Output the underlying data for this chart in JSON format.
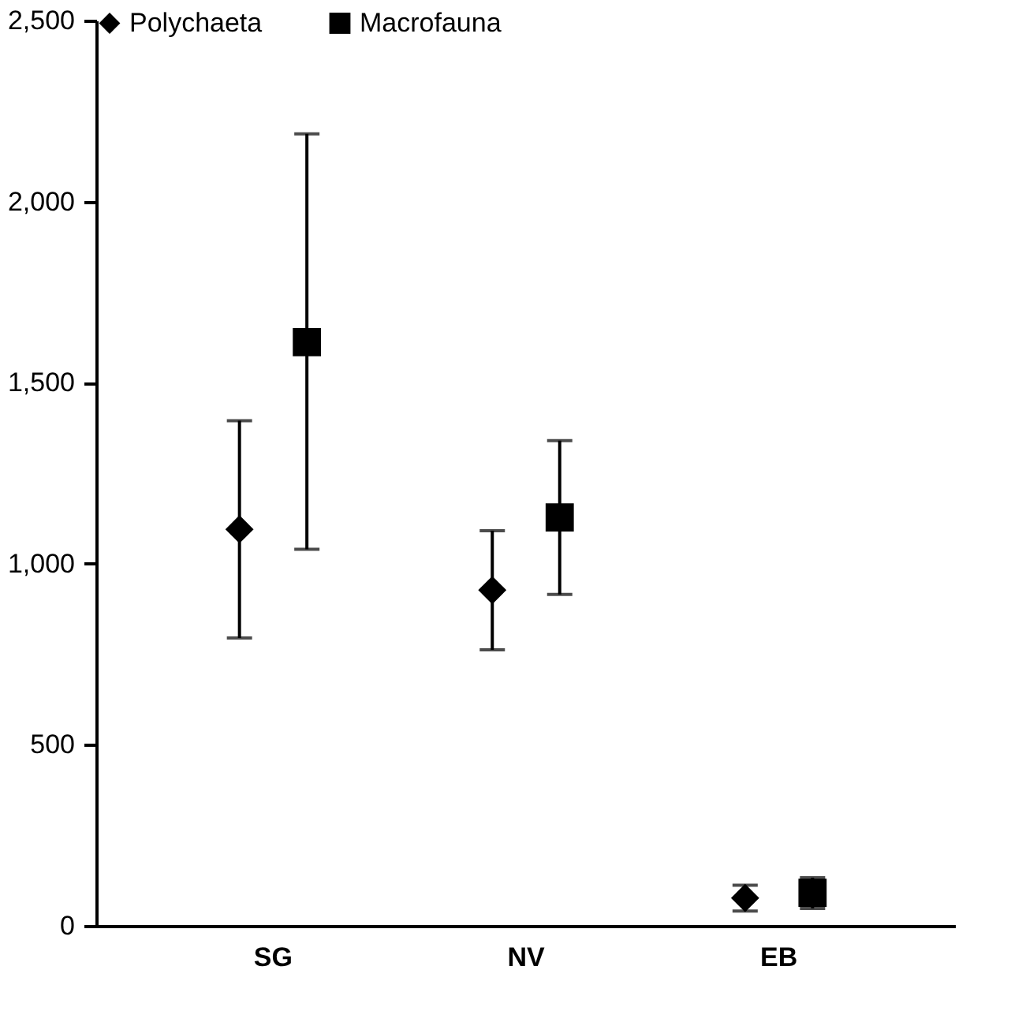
{
  "chart_data": {
    "type": "scatter",
    "categories": [
      "SG",
      "NV",
      "EB"
    ],
    "series": [
      {
        "name": "Polychaeta",
        "color": "#000000",
        "marker": "diamond",
        "values": [
          1095,
          927,
          77
        ],
        "errors": [
          [
            795,
            1395
          ],
          [
            762,
            1091
          ],
          [
            41,
            112
          ]
        ]
      },
      {
        "name": "Macrofauna",
        "color": "#000000",
        "marker": "square",
        "values": [
          1612,
          1128,
          91
        ],
        "errors": [
          [
            1040,
            2187
          ],
          [
            915,
            1340
          ],
          [
            48,
            133
          ]
        ]
      }
    ],
    "ylim": [
      0,
      2500
    ],
    "yticks": [
      {
        "value": 0,
        "label": "0"
      },
      {
        "value": 500,
        "label": "500"
      },
      {
        "value": 1000,
        "label": "1,000"
      },
      {
        "value": 1500,
        "label": "1,500"
      },
      {
        "value": 2000,
        "label": "2,000"
      },
      {
        "value": 2500,
        "label": "2,500"
      }
    ],
    "grid": false,
    "legend": "top"
  }
}
